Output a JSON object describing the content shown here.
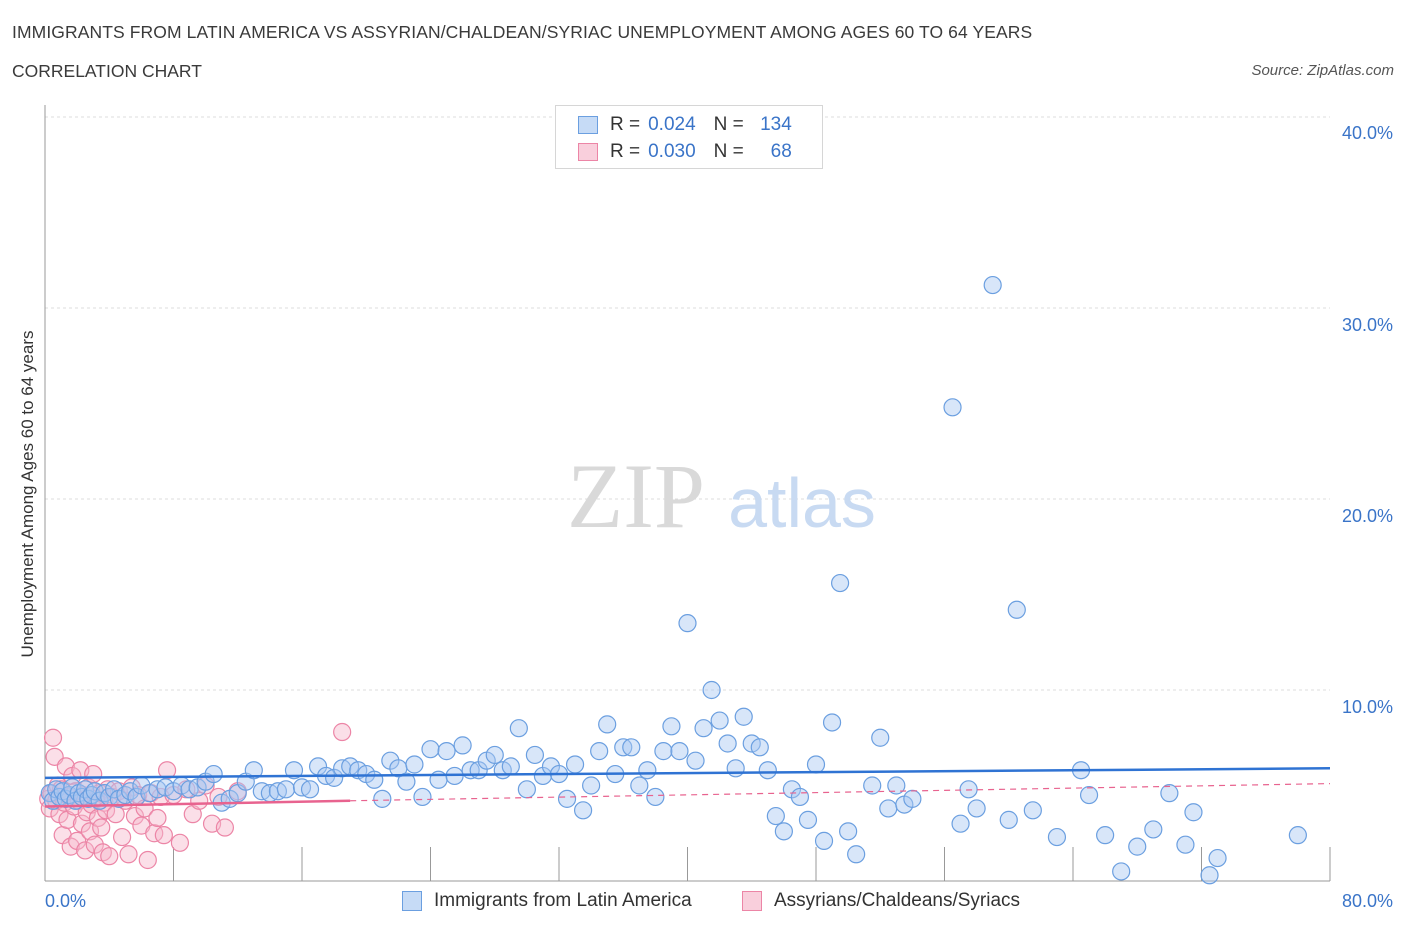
{
  "header": {
    "title": "IMMIGRANTS FROM LATIN AMERICA VS ASSYRIAN/CHALDEAN/SYRIAC UNEMPLOYMENT AMONG AGES 60 TO 64 YEARS",
    "subtitle": "CORRELATION CHART",
    "source": "Source: ZipAtlas.com"
  },
  "watermark": {
    "zip": "ZIP",
    "atlas": "atlas"
  },
  "colors": {
    "blue_fill": "#a9c8f2",
    "blue_edge": "#6b9fe0",
    "blue_line": "#2f73d3",
    "pink_fill": "#f6b9cc",
    "pink_edge": "#ec85a6",
    "pink_line": "#e8638f",
    "axis_text": "#3a74c8",
    "grid": "#dcdcdc"
  },
  "legend_top": {
    "rows": [
      {
        "r_label": "R =",
        "r_value": "0.024",
        "n_label": "N =",
        "n_value": "134",
        "color": "blue"
      },
      {
        "r_label": "R =",
        "r_value": "0.030",
        "n_label": "N =",
        "n_value": "68",
        "color": "pink"
      }
    ]
  },
  "legend_bottom": {
    "items": [
      {
        "label": "Immigrants from Latin America",
        "color": "blue"
      },
      {
        "label": "Assyrians/Chaldeans/Syriacs",
        "color": "pink"
      }
    ]
  },
  "chart_data": {
    "type": "scatter",
    "title": "IMMIGRANTS FROM LATIN AMERICA VS ASSYRIAN/CHALDEAN/SYRIAC UNEMPLOYMENT AMONG AGES 60 TO 64 YEARS",
    "ylabel": "Unemployment Among Ages 60 to 64 years",
    "xlabel": "",
    "xlim": [
      0,
      80
    ],
    "ylim": [
      0,
      40
    ],
    "x_tick_labels": [
      "0.0%",
      "80.0%"
    ],
    "y_ticks": [
      10,
      20,
      30,
      40
    ],
    "y_tick_labels": [
      "10.0%",
      "20.0%",
      "30.0%",
      "40.0%"
    ],
    "grid": true,
    "legend_position": "bottom",
    "series": [
      {
        "name": "Immigrants from Latin America",
        "color": "blue",
        "trend": {
          "x": [
            0,
            80
          ],
          "y": [
            5.4,
            5.9
          ]
        },
        "points": [
          [
            0.3,
            4.6
          ],
          [
            0.5,
            4.2
          ],
          [
            0.7,
            4.8
          ],
          [
            0.9,
            4.4
          ],
          [
            1.1,
            4.7
          ],
          [
            1.3,
            4.3
          ],
          [
            1.5,
            4.5
          ],
          [
            1.7,
            4.9
          ],
          [
            1.9,
            4.2
          ],
          [
            2.1,
            4.6
          ],
          [
            2.3,
            4.4
          ],
          [
            2.5,
            4.8
          ],
          [
            2.7,
            4.3
          ],
          [
            2.9,
            4.5
          ],
          [
            3.1,
            4.7
          ],
          [
            3.4,
            4.2
          ],
          [
            3.7,
            4.6
          ],
          [
            4.0,
            4.4
          ],
          [
            4.3,
            4.8
          ],
          [
            4.6,
            4.3
          ],
          [
            5.0,
            4.5
          ],
          [
            5.3,
            4.7
          ],
          [
            5.7,
            4.4
          ],
          [
            6.0,
            5.0
          ],
          [
            6.5,
            4.6
          ],
          [
            7.0,
            4.8
          ],
          [
            7.5,
            4.9
          ],
          [
            8.0,
            4.7
          ],
          [
            8.5,
            5.0
          ],
          [
            9.0,
            4.8
          ],
          [
            9.5,
            4.9
          ],
          [
            10.0,
            5.2
          ],
          [
            10.5,
            5.6
          ],
          [
            11.0,
            4.1
          ],
          [
            11.5,
            4.3
          ],
          [
            12.0,
            4.6
          ],
          [
            12.5,
            5.2
          ],
          [
            13.0,
            5.8
          ],
          [
            13.5,
            4.7
          ],
          [
            14.0,
            4.6
          ],
          [
            14.5,
            4.7
          ],
          [
            15.0,
            4.8
          ],
          [
            15.5,
            5.8
          ],
          [
            16.0,
            4.9
          ],
          [
            16.5,
            4.8
          ],
          [
            17.0,
            6.0
          ],
          [
            17.5,
            5.5
          ],
          [
            18.0,
            5.4
          ],
          [
            18.5,
            5.9
          ],
          [
            19.0,
            6.0
          ],
          [
            19.5,
            5.8
          ],
          [
            20.0,
            5.6
          ],
          [
            20.5,
            5.3
          ],
          [
            21.0,
            4.3
          ],
          [
            21.5,
            6.3
          ],
          [
            22.0,
            5.9
          ],
          [
            22.5,
            5.2
          ],
          [
            23.0,
            6.1
          ],
          [
            23.5,
            4.4
          ],
          [
            24.0,
            6.9
          ],
          [
            24.5,
            5.3
          ],
          [
            25.0,
            6.8
          ],
          [
            25.5,
            5.5
          ],
          [
            26.0,
            7.1
          ],
          [
            26.5,
            5.8
          ],
          [
            27.0,
            5.8
          ],
          [
            27.5,
            6.3
          ],
          [
            28.0,
            6.6
          ],
          [
            28.5,
            5.8
          ],
          [
            29.0,
            6.0
          ],
          [
            29.5,
            8.0
          ],
          [
            30.0,
            4.8
          ],
          [
            30.5,
            6.6
          ],
          [
            31.0,
            5.5
          ],
          [
            31.5,
            6.0
          ],
          [
            32.0,
            5.6
          ],
          [
            32.5,
            4.3
          ],
          [
            33.0,
            6.1
          ],
          [
            33.5,
            3.7
          ],
          [
            34.0,
            5.0
          ],
          [
            34.5,
            6.8
          ],
          [
            35.0,
            8.2
          ],
          [
            35.5,
            5.6
          ],
          [
            36.0,
            7.0
          ],
          [
            36.5,
            7.0
          ],
          [
            37.0,
            5.0
          ],
          [
            37.5,
            5.8
          ],
          [
            38.0,
            4.4
          ],
          [
            38.5,
            6.8
          ],
          [
            39.0,
            8.1
          ],
          [
            39.5,
            6.8
          ],
          [
            40.0,
            13.5
          ],
          [
            40.5,
            6.3
          ],
          [
            41.0,
            8.0
          ],
          [
            41.5,
            10.0
          ],
          [
            42.0,
            8.4
          ],
          [
            42.5,
            7.2
          ],
          [
            43.0,
            5.9
          ],
          [
            43.5,
            8.6
          ],
          [
            44.0,
            7.2
          ],
          [
            44.5,
            7.0
          ],
          [
            45.0,
            5.8
          ],
          [
            45.5,
            3.4
          ],
          [
            46.0,
            2.6
          ],
          [
            46.5,
            4.8
          ],
          [
            47.0,
            4.4
          ],
          [
            47.5,
            3.2
          ],
          [
            48.0,
            6.1
          ],
          [
            48.5,
            2.1
          ],
          [
            49.0,
            8.3
          ],
          [
            49.5,
            15.6
          ],
          [
            50.0,
            2.6
          ],
          [
            50.5,
            1.4
          ],
          [
            51.5,
            5.0
          ],
          [
            52.0,
            7.5
          ],
          [
            52.5,
            3.8
          ],
          [
            53.0,
            5.0
          ],
          [
            53.5,
            4.0
          ],
          [
            54.0,
            4.3
          ],
          [
            56.5,
            24.8
          ],
          [
            57.0,
            3.0
          ],
          [
            57.5,
            4.8
          ],
          [
            58.0,
            3.8
          ],
          [
            59.0,
            31.2
          ],
          [
            60.0,
            3.2
          ],
          [
            60.5,
            14.2
          ],
          [
            61.5,
            3.7
          ],
          [
            63.0,
            2.3
          ],
          [
            64.5,
            5.8
          ],
          [
            65.0,
            4.5
          ],
          [
            66.0,
            2.4
          ],
          [
            67.0,
            0.5
          ],
          [
            68.0,
            1.8
          ],
          [
            69.0,
            2.7
          ],
          [
            70.0,
            4.6
          ],
          [
            71.0,
            1.9
          ],
          [
            71.5,
            3.6
          ],
          [
            72.5,
            0.3
          ],
          [
            73.0,
            1.2
          ],
          [
            78.0,
            2.4
          ]
        ]
      },
      {
        "name": "Assyrians/Chaldeans/Syriacs",
        "color": "pink",
        "trend": {
          "x": [
            0,
            19
          ],
          "y": [
            3.9,
            4.2
          ]
        },
        "trend_dashed": {
          "x": [
            19,
            80
          ],
          "y": [
            4.2,
            5.1
          ]
        },
        "points": [
          [
            0.2,
            4.3
          ],
          [
            0.3,
            3.8
          ],
          [
            0.4,
            4.6
          ],
          [
            0.5,
            7.5
          ],
          [
            0.6,
            6.5
          ],
          [
            0.7,
            4.2
          ],
          [
            0.8,
            5.0
          ],
          [
            0.9,
            3.5
          ],
          [
            1.0,
            4.8
          ],
          [
            1.1,
            2.4
          ],
          [
            1.2,
            4.1
          ],
          [
            1.3,
            6.0
          ],
          [
            1.4,
            3.2
          ],
          [
            1.5,
            4.4
          ],
          [
            1.6,
            1.8
          ],
          [
            1.7,
            5.5
          ],
          [
            1.8,
            3.9
          ],
          [
            1.9,
            4.7
          ],
          [
            2.0,
            2.1
          ],
          [
            2.1,
            4.2
          ],
          [
            2.2,
            5.8
          ],
          [
            2.3,
            3.0
          ],
          [
            2.4,
            4.5
          ],
          [
            2.5,
            1.6
          ],
          [
            2.6,
            3.6
          ],
          [
            2.7,
            4.9
          ],
          [
            2.8,
            2.6
          ],
          [
            2.9,
            4.0
          ],
          [
            3.0,
            5.6
          ],
          [
            3.1,
            1.9
          ],
          [
            3.2,
            4.3
          ],
          [
            3.3,
            3.3
          ],
          [
            3.4,
            4.6
          ],
          [
            3.5,
            2.8
          ],
          [
            3.6,
            1.5
          ],
          [
            3.7,
            4.1
          ],
          [
            3.8,
            3.7
          ],
          [
            3.9,
            4.8
          ],
          [
            4.0,
            1.3
          ],
          [
            4.2,
            4.4
          ],
          [
            4.4,
            3.5
          ],
          [
            4.6,
            4.7
          ],
          [
            4.8,
            2.3
          ],
          [
            5.0,
            4.2
          ],
          [
            5.2,
            1.4
          ],
          [
            5.4,
            4.9
          ],
          [
            5.6,
            3.4
          ],
          [
            5.8,
            4.5
          ],
          [
            6.0,
            2.9
          ],
          [
            6.2,
            3.8
          ],
          [
            6.4,
            1.1
          ],
          [
            6.6,
            4.6
          ],
          [
            6.8,
            2.5
          ],
          [
            7.0,
            3.3
          ],
          [
            7.2,
            4.4
          ],
          [
            7.4,
            2.4
          ],
          [
            7.6,
            5.8
          ],
          [
            8.0,
            4.5
          ],
          [
            8.4,
            2.0
          ],
          [
            8.8,
            4.8
          ],
          [
            9.2,
            3.5
          ],
          [
            9.6,
            4.2
          ],
          [
            10.0,
            5.0
          ],
          [
            10.4,
            3.0
          ],
          [
            10.8,
            4.4
          ],
          [
            11.2,
            2.8
          ],
          [
            12.0,
            4.7
          ],
          [
            18.5,
            7.8
          ]
        ]
      }
    ]
  }
}
